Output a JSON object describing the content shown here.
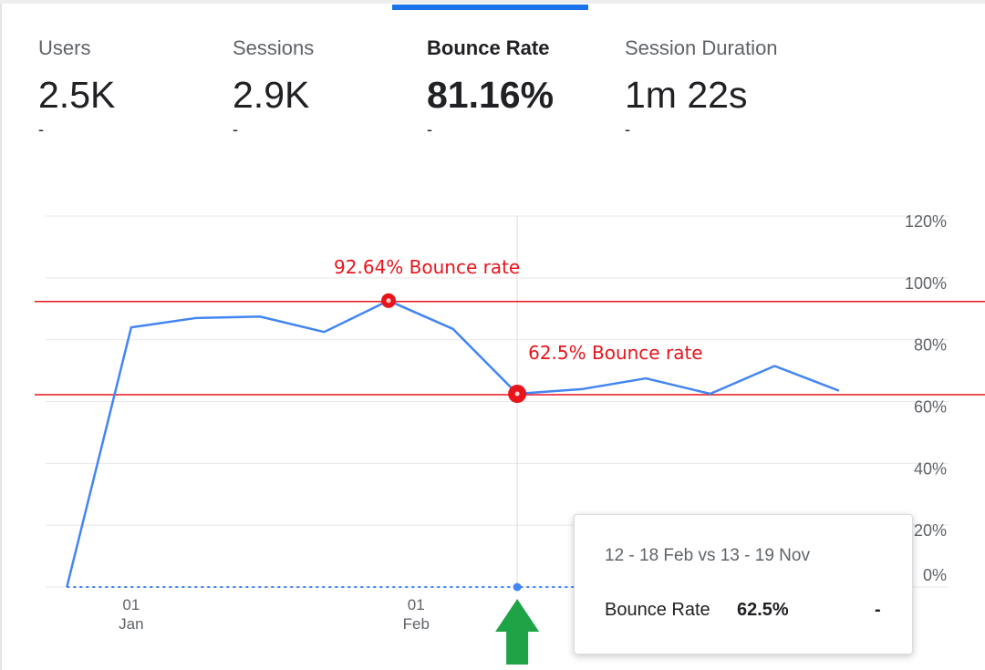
{
  "metrics": [
    {
      "label": "Users",
      "value": "2.5K",
      "delta": "-"
    },
    {
      "label": "Sessions",
      "value": "2.9K",
      "delta": "-"
    },
    {
      "label": "Bounce Rate",
      "value": "81.16%",
      "delta": "-"
    },
    {
      "label": "Session Duration",
      "value": "1m 22s",
      "delta": "-"
    }
  ],
  "active_metric": "Bounce Rate",
  "colors": {
    "series": "#4285f4",
    "annotation": "#e8141c",
    "grid": "#e8e8e8",
    "arrow": "#1ea446",
    "tab_indicator": "#1a73e8"
  },
  "chart_data": {
    "type": "line",
    "ylim": [
      0,
      120
    ],
    "yticks": [
      "0%",
      "20%",
      "40%",
      "60%",
      "80%",
      "100%",
      "120%"
    ],
    "ytick_values": [
      0,
      20,
      40,
      60,
      80,
      100,
      120
    ],
    "x_ticks": [
      {
        "day": "01",
        "month": "Jan",
        "x": "2024-01-01"
      },
      {
        "day": "01",
        "month": "Feb",
        "x": "2024-02-01"
      }
    ],
    "xlim": [
      "2023-12-21",
      "2024-03-20"
    ],
    "grid": true,
    "series": [
      {
        "x": [
          "2023-12-25",
          "2024-01-01",
          "2024-01-08",
          "2024-01-15",
          "2024-01-22",
          "2024-01-29",
          "2024-02-05",
          "2024-02-12",
          "2024-02-19",
          "2024-02-26",
          "2024-03-04",
          "2024-03-11",
          "2024-03-18"
        ],
        "values": [
          0,
          84,
          87,
          87.5,
          82.5,
          92.64,
          83.5,
          62.5,
          64,
          67.5,
          62.5,
          71.5,
          63.5
        ]
      }
    ],
    "comparison_series": {
      "x": [
        "2023-12-25",
        "2024-03-18"
      ],
      "values": [
        0,
        0
      ],
      "style": "dotted"
    },
    "hover_x": "2024-02-12",
    "annotations": [
      {
        "text": "92.64% Bounce rate",
        "x": "2024-01-29",
        "value": 92.64
      },
      {
        "text": "62.5% Bounce rate",
        "x": "2024-02-12",
        "value": 62.5
      }
    ],
    "reference_lines": [
      92.64,
      62.5
    ]
  },
  "tooltip": {
    "range": "12 - 18 Feb vs 13 - 19 Nov",
    "metric": "Bounce Rate",
    "value": "62.5%",
    "delta": "-"
  }
}
